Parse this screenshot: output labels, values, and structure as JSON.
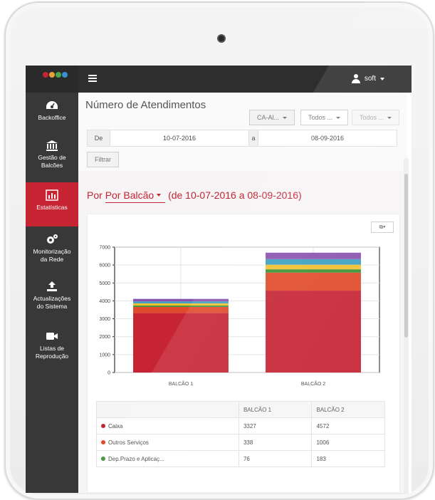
{
  "header": {
    "user_name": "soft",
    "logo_colors": [
      "#c62433",
      "#e8a03a",
      "#4aa84a",
      "#3a8fd0"
    ]
  },
  "sidebar": {
    "items": [
      {
        "label": "Backoffice",
        "icon": "dashboard-icon",
        "active": false
      },
      {
        "label": "Gestão de Balcões",
        "icon": "bank-icon",
        "active": false
      },
      {
        "label": "Estatísticas",
        "icon": "bar-chart-icon",
        "active": true
      },
      {
        "label": "Monitorização da Rede",
        "icon": "gears-icon",
        "active": false
      },
      {
        "label": "Actualizações do Sistema",
        "icon": "upload-icon",
        "active": false
      },
      {
        "label": "Listas de Reprodução",
        "icon": "video-camera-icon",
        "active": false
      }
    ]
  },
  "main": {
    "title": "Número de Atendimentos",
    "filters": {
      "select1": "CA-Al...",
      "select2": "Todos ...",
      "select3": "Todos ..."
    },
    "dates": {
      "from_label": "De",
      "from_value": "10-07-2016",
      "to_label": "a",
      "to_value": "08-09-2016"
    },
    "filter_button": "Filtrar",
    "section": {
      "dropdown": "Por Balcão",
      "range": "(de 10-07-2016 a 08-09-2016)"
    }
  },
  "chart_data": {
    "type": "bar",
    "stacked": true,
    "categories": [
      "BALCÃO 1",
      "BALCÃO 2"
    ],
    "ylim": [
      0,
      7000
    ],
    "yticks": [
      0,
      1000,
      2000,
      3000,
      4000,
      5000,
      6000,
      7000
    ],
    "grid": true,
    "series": [
      {
        "name": "Caixa",
        "color": "#c62433",
        "values": [
          3327,
          4572
        ]
      },
      {
        "name": "Outros Serviços",
        "color": "#e04a2a",
        "values": [
          338,
          1006
        ]
      },
      {
        "name": "Dep.Prazo e Aplicaç...",
        "color": "#3a8f2f",
        "values": [
          76,
          183
        ]
      },
      {
        "color": "#f0c030",
        "values": [
          120,
          260
        ]
      },
      {
        "color": "#3a9fc0",
        "values": [
          110,
          310
        ]
      },
      {
        "color": "#8a52b0",
        "values": [
          140,
          360
        ]
      }
    ]
  },
  "table": {
    "headers": [
      "",
      "BALCÃO 1",
      "BALCÃO 2"
    ],
    "rows": [
      {
        "name": "Caixa",
        "color": "#c62433",
        "b1": "3327",
        "b2": "4572"
      },
      {
        "name": "Outros Serviços",
        "color": "#e04a2a",
        "b1": "338",
        "b2": "1006"
      },
      {
        "name": "Dep.Prazo e Aplicaç...",
        "color": "#3a8f2f",
        "b1": "76",
        "b2": "183"
      }
    ]
  }
}
